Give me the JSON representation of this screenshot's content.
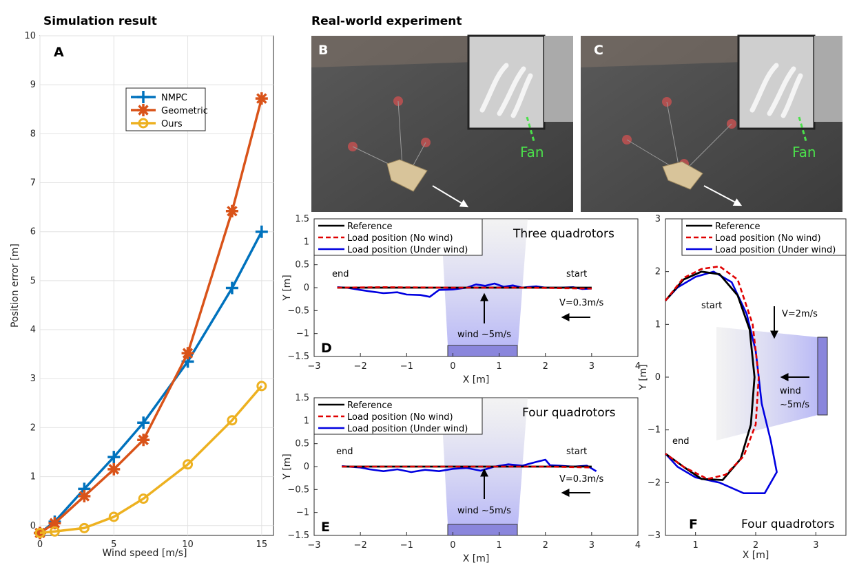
{
  "headings": {
    "simulation": "Simulation result",
    "real_world": "Real-world experiment"
  },
  "colors": {
    "nmpc": "#0072BD",
    "geometric": "#D95319",
    "ours": "#EDB120",
    "reference": "#000000",
    "no_wind": "#E00000",
    "under_wind": "#0000E0",
    "fan_label": "#4be04b",
    "wind_region": "#8c8cf0",
    "fan_block": "#8a86dc"
  },
  "photos": [
    {
      "label": "B",
      "annotation": "Fan"
    },
    {
      "label": "C",
      "annotation": "Fan"
    }
  ],
  "chart_data": [
    {
      "panel": "A",
      "type": "line",
      "xlabel": "Wind speed [m/s]",
      "ylabel": "Position error [m]",
      "xlim": [
        0,
        15.8
      ],
      "ylim": [
        -0.2,
        10
      ],
      "xticks": [
        0,
        5,
        10,
        15
      ],
      "yticks": [
        0,
        1,
        2,
        3,
        4,
        5,
        6,
        7,
        8,
        9,
        10
      ],
      "grid": true,
      "legend_position": "top-center",
      "x": [
        0,
        1,
        3,
        5,
        7,
        10,
        13,
        15
      ],
      "series": [
        {
          "name": "NMPC",
          "marker": "plus",
          "values": [
            -0.15,
            0.08,
            0.75,
            1.4,
            2.1,
            3.35,
            4.85,
            6.0
          ]
        },
        {
          "name": "Geometric",
          "marker": "asterisk",
          "values": [
            -0.15,
            0.05,
            0.6,
            1.15,
            1.75,
            3.52,
            6.42,
            8.72
          ]
        },
        {
          "name": "Ours",
          "marker": "circle",
          "values": [
            -0.15,
            -0.12,
            -0.05,
            0.18,
            0.55,
            1.25,
            2.15,
            2.85
          ]
        }
      ]
    },
    {
      "panel": "D",
      "type": "line",
      "title": "Three quadrotors",
      "xlabel": "X [m]",
      "ylabel": "Y [m]",
      "xlim": [
        -3,
        4
      ],
      "ylim": [
        -1.5,
        1.5
      ],
      "xticks": [
        -3,
        -2,
        -1,
        0,
        1,
        2,
        3,
        4
      ],
      "yticks": [
        1.5,
        1,
        0.5,
        0,
        -0.5,
        -1,
        -1.5
      ],
      "legend_position": "top-left",
      "annotations": {
        "start": "start",
        "end": "end",
        "velocity": "V=0.3m/s",
        "wind": "wind ~5m/s"
      },
      "series": [
        {
          "name": "Reference",
          "style": "solid",
          "points": [
            [
              -2.5,
              0.0
            ],
            [
              3.0,
              0.0
            ]
          ]
        },
        {
          "name": "Load position (No wind)",
          "style": "dashed",
          "points": [
            [
              -2.5,
              0.0
            ],
            [
              -1.5,
              0.01
            ],
            [
              0,
              0.0
            ],
            [
              1.5,
              0.0
            ],
            [
              3.0,
              -0.02
            ]
          ]
        },
        {
          "name": "Load position (Under wind)",
          "style": "solid",
          "points": [
            [
              -2.5,
              0.01
            ],
            [
              -2.3,
              0.0
            ],
            [
              -2.0,
              -0.05
            ],
            [
              -1.8,
              -0.08
            ],
            [
              -1.5,
              -0.12
            ],
            [
              -1.2,
              -0.1
            ],
            [
              -1.0,
              -0.15
            ],
            [
              -0.7,
              -0.16
            ],
            [
              -0.5,
              -0.2
            ],
            [
              -0.3,
              -0.05
            ],
            [
              0.0,
              -0.04
            ],
            [
              0.3,
              0.0
            ],
            [
              0.5,
              0.07
            ],
            [
              0.7,
              0.04
            ],
            [
              0.9,
              0.09
            ],
            [
              1.1,
              0.02
            ],
            [
              1.3,
              0.05
            ],
            [
              1.5,
              0.0
            ],
            [
              1.8,
              0.03
            ],
            [
              2.0,
              0.0
            ],
            [
              2.3,
              0.0
            ],
            [
              2.6,
              0.01
            ],
            [
              2.8,
              -0.03
            ],
            [
              3.0,
              -0.02
            ]
          ]
        }
      ]
    },
    {
      "panel": "E",
      "type": "line",
      "title": "Four quadrotors",
      "xlabel": "X [m]",
      "ylabel": "Y [m]",
      "xlim": [
        -3,
        4
      ],
      "ylim": [
        -1.5,
        1.5
      ],
      "xticks": [
        -3,
        -2,
        -1,
        0,
        1,
        2,
        3,
        4
      ],
      "yticks": [
        1.5,
        1,
        0.5,
        0,
        -0.5,
        -1,
        -1.5
      ],
      "legend_position": "top-left",
      "annotations": {
        "start": "start",
        "end": "end",
        "velocity": "V=0.3m/s",
        "wind": "wind ~5m/s"
      },
      "series": [
        {
          "name": "Reference",
          "style": "solid",
          "points": [
            [
              -2.4,
              0.0
            ],
            [
              3.0,
              0.0
            ]
          ]
        },
        {
          "name": "Load position (No wind)",
          "style": "dashed",
          "points": [
            [
              -2.4,
              0.0
            ],
            [
              -1.0,
              0.0
            ],
            [
              0.5,
              0.0
            ],
            [
              2.0,
              0.0
            ],
            [
              3.0,
              -0.02
            ]
          ]
        },
        {
          "name": "Load position (Under wind)",
          "style": "solid",
          "points": [
            [
              -2.4,
              0.01
            ],
            [
              -2.0,
              -0.02
            ],
            [
              -1.8,
              -0.06
            ],
            [
              -1.5,
              -0.1
            ],
            [
              -1.2,
              -0.06
            ],
            [
              -0.9,
              -0.12
            ],
            [
              -0.6,
              -0.07
            ],
            [
              -0.3,
              -0.1
            ],
            [
              0.0,
              -0.05
            ],
            [
              0.3,
              -0.03
            ],
            [
              0.6,
              -0.09
            ],
            [
              0.9,
              0.0
            ],
            [
              1.2,
              0.05
            ],
            [
              1.5,
              0.02
            ],
            [
              1.8,
              0.1
            ],
            [
              2.0,
              0.15
            ],
            [
              2.1,
              0.03
            ],
            [
              2.3,
              0.02
            ],
            [
              2.6,
              0.0
            ],
            [
              2.9,
              0.02
            ],
            [
              3.0,
              -0.04
            ],
            [
              3.1,
              -0.1
            ]
          ]
        }
      ]
    },
    {
      "panel": "F",
      "type": "line",
      "title": "Four quadrotors",
      "xlabel": "X [m]",
      "ylabel": "Y [m]",
      "xlim": [
        0.5,
        3.5
      ],
      "ylim": [
        -3,
        3
      ],
      "xticks": [
        1,
        2,
        3
      ],
      "yticks": [
        3,
        2,
        1,
        0,
        -1,
        -2,
        -3
      ],
      "legend_position": "top",
      "annotations": {
        "start": "start",
        "end": "end",
        "velocity": "V=2m/s",
        "wind": "wind\n~5m/s"
      },
      "series": [
        {
          "name": "Reference",
          "style": "solid",
          "points": [
            [
              0.5,
              1.45
            ],
            [
              0.8,
              1.85
            ],
            [
              1.1,
              2.0
            ],
            [
              1.4,
              1.95
            ],
            [
              1.7,
              1.55
            ],
            [
              1.9,
              0.9
            ],
            [
              1.98,
              0.0
            ],
            [
              1.92,
              -0.9
            ],
            [
              1.75,
              -1.55
            ],
            [
              1.45,
              -1.95
            ],
            [
              1.1,
              -1.93
            ],
            [
              0.8,
              -1.7
            ],
            [
              0.5,
              -1.45
            ]
          ]
        },
        {
          "name": "Load position (No wind)",
          "style": "dashed",
          "points": [
            [
              0.5,
              1.45
            ],
            [
              0.8,
              1.88
            ],
            [
              1.1,
              2.05
            ],
            [
              1.4,
              2.1
            ],
            [
              1.7,
              1.85
            ],
            [
              1.95,
              1.0
            ],
            [
              2.05,
              0.0
            ],
            [
              2.0,
              -0.9
            ],
            [
              1.8,
              -1.5
            ],
            [
              1.5,
              -1.85
            ],
            [
              1.2,
              -1.93
            ],
            [
              0.8,
              -1.7
            ],
            [
              0.5,
              -1.45
            ]
          ]
        },
        {
          "name": "Load position (Under wind)",
          "style": "solid",
          "points": [
            [
              0.5,
              1.45
            ],
            [
              0.7,
              1.7
            ],
            [
              1.0,
              1.9
            ],
            [
              1.3,
              2.0
            ],
            [
              1.6,
              1.8
            ],
            [
              1.85,
              1.2
            ],
            [
              2.0,
              0.5
            ],
            [
              2.05,
              0.0
            ],
            [
              2.1,
              -0.5
            ],
            [
              2.25,
              -1.2
            ],
            [
              2.35,
              -1.8
            ],
            [
              2.15,
              -2.2
            ],
            [
              1.8,
              -2.2
            ],
            [
              1.4,
              -2.0
            ],
            [
              1.0,
              -1.9
            ],
            [
              0.7,
              -1.7
            ],
            [
              0.5,
              -1.45
            ]
          ]
        }
      ]
    }
  ]
}
